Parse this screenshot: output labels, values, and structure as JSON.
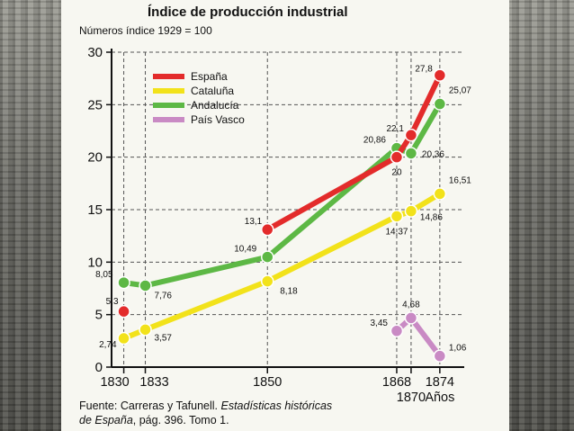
{
  "chart_data": {
    "type": "line",
    "title": "Índice de producción industrial",
    "subtitle": "Números índice 1929 = 100",
    "xlabel": "Años",
    "ylabel": "",
    "ylim": [
      0,
      30
    ],
    "yticks": [
      "0",
      "5",
      "10",
      "15",
      "20",
      "25",
      "30"
    ],
    "xticks": [
      "1830",
      "1833",
      "1850",
      "1868",
      "1870",
      "1874"
    ],
    "grid": true,
    "legend_position": "top-left",
    "series": [
      {
        "name": "España",
        "color": "#e32b2b",
        "points": [
          {
            "x": 1830,
            "y": 5.3,
            "label": "5,3"
          },
          {
            "x": 1850,
            "y": 13.1,
            "label": "13,1"
          },
          {
            "x": 1868,
            "y": 20,
            "label": "20"
          },
          {
            "x": 1870,
            "y": 22.1,
            "label": "22,1"
          },
          {
            "x": 1874,
            "y": 27.8,
            "label": "27,8"
          }
        ]
      },
      {
        "name": "Cataluña",
        "color": "#f2e21a",
        "points": [
          {
            "x": 1830,
            "y": 2.74,
            "label": "2,74"
          },
          {
            "x": 1833,
            "y": 3.57,
            "label": "3,57"
          },
          {
            "x": 1850,
            "y": 8.18,
            "label": "8,18"
          },
          {
            "x": 1868,
            "y": 14.37,
            "label": "14,37"
          },
          {
            "x": 1870,
            "y": 14.86,
            "label": "14,86"
          },
          {
            "x": 1874,
            "y": 16.51,
            "label": "16,51"
          }
        ]
      },
      {
        "name": "Andalucía",
        "color": "#5db845",
        "points": [
          {
            "x": 1830,
            "y": 8.05,
            "label": "8,05"
          },
          {
            "x": 1833,
            "y": 7.76,
            "label": "7,76"
          },
          {
            "x": 1850,
            "y": 10.49,
            "label": "10,49"
          },
          {
            "x": 1868,
            "y": 20.86,
            "label": "20,86"
          },
          {
            "x": 1870,
            "y": 20.36,
            "label": "20,36"
          },
          {
            "x": 1874,
            "y": 25.07,
            "label": "25,07"
          }
        ]
      },
      {
        "name": "País Vasco",
        "color": "#c98ac4",
        "points": [
          {
            "x": 1868,
            "y": 3.45,
            "label": "3,45"
          },
          {
            "x": 1870,
            "y": 4.68,
            "label": "4,68"
          },
          {
            "x": 1874,
            "y": 1.06,
            "label": "1,06"
          }
        ]
      }
    ]
  },
  "source": {
    "prefix": "Fuente: Carreras y Tafunell. ",
    "italic1": "Estadísticas históricas",
    "italic2": "de España",
    "suffix": ", pág. 396. Tomo 1."
  }
}
